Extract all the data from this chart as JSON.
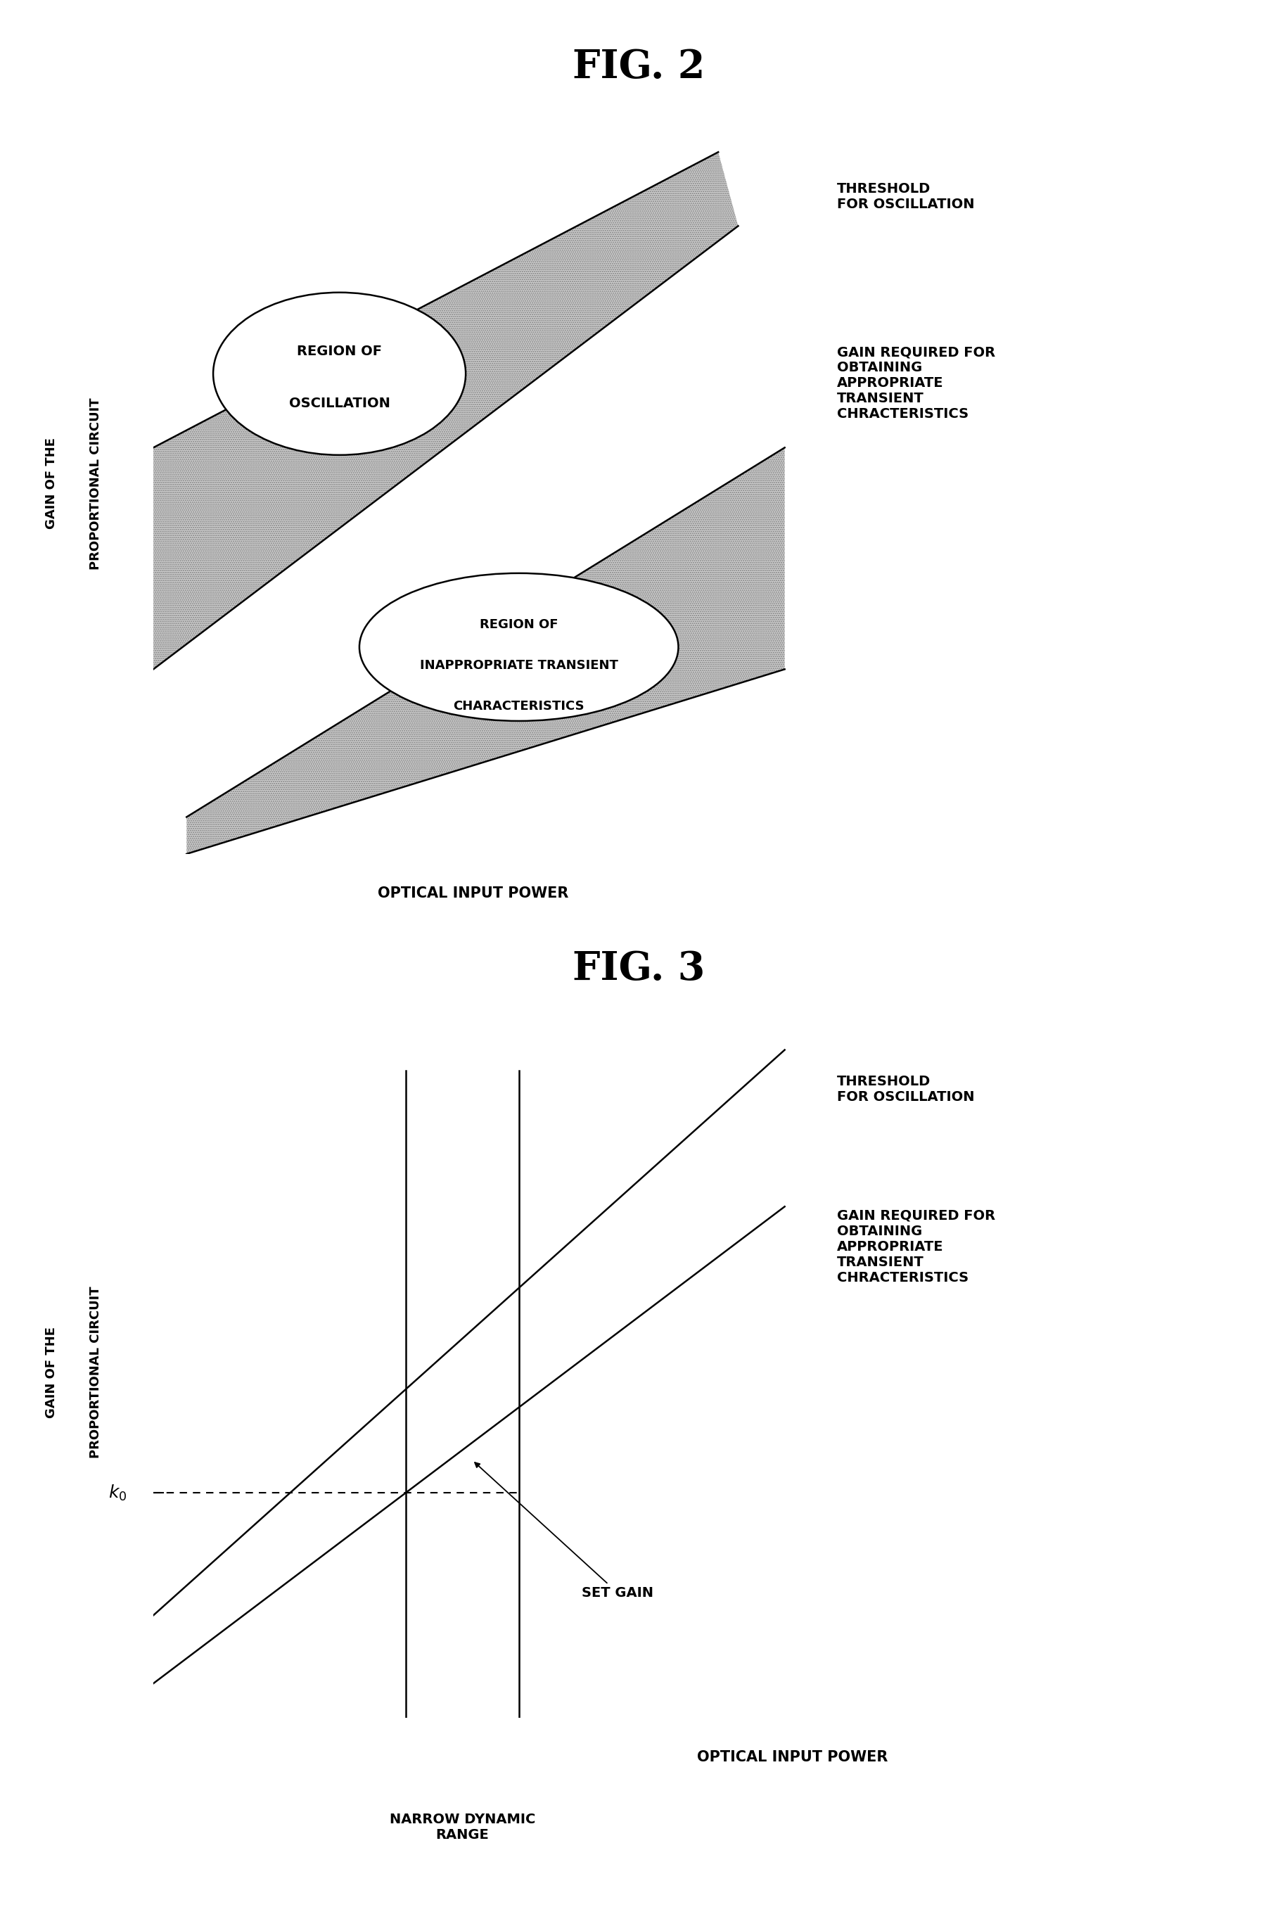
{
  "fig2_title": "FIG. 2",
  "fig3_title": "FIG. 3",
  "bg_color": "#ffffff",
  "xlabel": "OPTICAL INPUT POWER",
  "ylabel_line1": "GAIN OF THE",
  "ylabel_line2": "PROPORTIONAL CIRCUIT",
  "fig2_annot": {
    "threshold": "THRESHOLD\nFOR OSCILLATION",
    "gain_required": "GAIN REQUIRED FOR\nOBTAINING\nAPPROPRIATE\nTRANSIENT\nCHRACTERISTICS",
    "region_osc": "REGION OF\nOSCILLATION",
    "region_inapp": "REGION OF\nINAPPROPRIATE TRANSIENT\nCHARACTERISTICS"
  },
  "fig3_annot": {
    "threshold": "THRESHOLD\nFOR OSCILLATION",
    "gain_required": "GAIN REQUIRED FOR\nOBTAINING\nAPPROPRIATE\nTRANSIENT\nCHRACTERISTICS",
    "set_gain": "SET GAIN",
    "narrow_range": "NARROW DYNAMIC\nRANGE",
    "k0": "k0"
  },
  "title_fontsize": 40,
  "label_fontsize": 14,
  "annot_fontsize": 14,
  "axis_label_fontsize": 15,
  "ylabel_fontsize": 13
}
